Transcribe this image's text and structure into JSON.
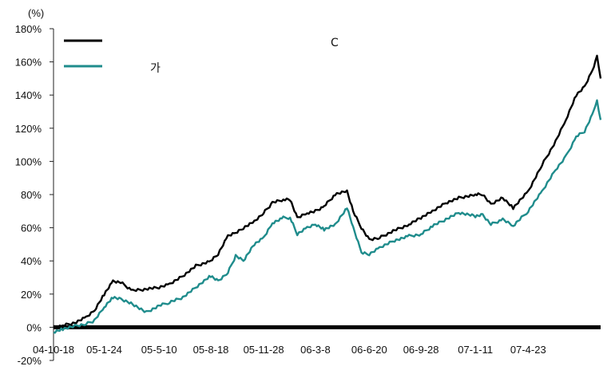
{
  "chart_data": {
    "type": "line",
    "unit_label": "(%)",
    "y_ticks": [
      "180%",
      "160%",
      "140%",
      "120%",
      "100%",
      "80%",
      "60%",
      "40%",
      "20%",
      "0%",
      "-20%"
    ],
    "x_ticks": [
      "04-10-18",
      "05-1-24",
      "05-5-10",
      "05-8-18",
      "05-11-28",
      "06-3-8",
      "06-6-20",
      "06-9-28",
      "07-1-11",
      "07-4-23"
    ],
    "x_tick_dates": [
      "2004-10-18",
      "2005-01-24",
      "2005-05-10",
      "2005-08-18",
      "2005-11-28",
      "2006-03-08",
      "2006-06-20",
      "2006-09-28",
      "2007-01-11",
      "2007-04-23"
    ],
    "x_range": [
      "2004-10-18",
      "2007-09-10"
    ],
    "ylim": [
      -20,
      180
    ],
    "grid": false,
    "legend_position": "top-left",
    "series": [
      {
        "name": "C",
        "color": "#000000",
        "points": [
          [
            "2004-10-18",
            0
          ],
          [
            "2004-11-05",
            1
          ],
          [
            "2004-12-01",
            3
          ],
          [
            "2004-12-20",
            6
          ],
          [
            "2005-01-05",
            10
          ],
          [
            "2005-01-24",
            20
          ],
          [
            "2005-02-10",
            28
          ],
          [
            "2005-02-25",
            27
          ],
          [
            "2005-03-20",
            22
          ],
          [
            "2005-04-15",
            23
          ],
          [
            "2005-05-10",
            24
          ],
          [
            "2005-05-30",
            26
          ],
          [
            "2005-06-25",
            31
          ],
          [
            "2005-07-20",
            37
          ],
          [
            "2005-08-18",
            40
          ],
          [
            "2005-09-01",
            44
          ],
          [
            "2005-09-20",
            55
          ],
          [
            "2005-10-05",
            57
          ],
          [
            "2005-10-20",
            60
          ],
          [
            "2005-11-10",
            64
          ],
          [
            "2005-11-28",
            69
          ],
          [
            "2005-12-15",
            75
          ],
          [
            "2006-01-05",
            77
          ],
          [
            "2006-01-18",
            77
          ],
          [
            "2006-02-01",
            66
          ],
          [
            "2006-02-20",
            69
          ],
          [
            "2006-03-08",
            70
          ],
          [
            "2006-03-25",
            73
          ],
          [
            "2006-04-15",
            80
          ],
          [
            "2006-05-08",
            82
          ],
          [
            "2006-05-20",
            70
          ],
          [
            "2006-06-05",
            60
          ],
          [
            "2006-06-20",
            53
          ],
          [
            "2006-07-10",
            54
          ],
          [
            "2006-08-05",
            58
          ],
          [
            "2006-09-05",
            62
          ],
          [
            "2006-09-28",
            66
          ],
          [
            "2006-10-20",
            70
          ],
          [
            "2006-11-15",
            75
          ],
          [
            "2006-12-10",
            78
          ],
          [
            "2007-01-11",
            80
          ],
          [
            "2007-01-25",
            80
          ],
          [
            "2007-02-10",
            74
          ],
          [
            "2007-03-05",
            78
          ],
          [
            "2007-03-25",
            72
          ],
          [
            "2007-04-23",
            82
          ],
          [
            "2007-05-20",
            98
          ],
          [
            "2007-06-15",
            112
          ],
          [
            "2007-07-05",
            125
          ],
          [
            "2007-07-25",
            140
          ],
          [
            "2007-08-10",
            145
          ],
          [
            "2007-08-25",
            155
          ],
          [
            "2007-09-03",
            163
          ],
          [
            "2007-09-10",
            150
          ]
        ]
      },
      {
        "name": "가",
        "color": "#1f8c8c",
        "points": [
          [
            "2004-10-18",
            -3
          ],
          [
            "2004-11-05",
            -1
          ],
          [
            "2004-12-01",
            1
          ],
          [
            "2004-12-20",
            2
          ],
          [
            "2005-01-05",
            4
          ],
          [
            "2005-01-24",
            12
          ],
          [
            "2005-02-10",
            18
          ],
          [
            "2005-02-25",
            17
          ],
          [
            "2005-03-20",
            14
          ],
          [
            "2005-04-15",
            9
          ],
          [
            "2005-05-10",
            13
          ],
          [
            "2005-05-30",
            15
          ],
          [
            "2005-06-25",
            18
          ],
          [
            "2005-07-20",
            24
          ],
          [
            "2005-08-18",
            31
          ],
          [
            "2005-09-01",
            28
          ],
          [
            "2005-09-20",
            33
          ],
          [
            "2005-10-05",
            43
          ],
          [
            "2005-10-20",
            40
          ],
          [
            "2005-11-10",
            50
          ],
          [
            "2005-11-28",
            54
          ],
          [
            "2005-12-15",
            63
          ],
          [
            "2006-01-05",
            66
          ],
          [
            "2006-01-18",
            66
          ],
          [
            "2006-02-01",
            56
          ],
          [
            "2006-02-20",
            60
          ],
          [
            "2006-03-08",
            62
          ],
          [
            "2006-03-25",
            59
          ],
          [
            "2006-04-15",
            62
          ],
          [
            "2006-05-08",
            72
          ],
          [
            "2006-05-20",
            60
          ],
          [
            "2006-06-05",
            45
          ],
          [
            "2006-06-20",
            44
          ],
          [
            "2006-07-10",
            48
          ],
          [
            "2006-08-05",
            52
          ],
          [
            "2006-09-05",
            55
          ],
          [
            "2006-09-28",
            56
          ],
          [
            "2006-10-20",
            61
          ],
          [
            "2006-11-15",
            65
          ],
          [
            "2006-12-10",
            69
          ],
          [
            "2007-01-11",
            67
          ],
          [
            "2007-01-25",
            68
          ],
          [
            "2007-02-10",
            62
          ],
          [
            "2007-03-05",
            65
          ],
          [
            "2007-03-25",
            61
          ],
          [
            "2007-04-23",
            70
          ],
          [
            "2007-05-20",
            82
          ],
          [
            "2007-06-15",
            95
          ],
          [
            "2007-07-05",
            103
          ],
          [
            "2007-07-25",
            115
          ],
          [
            "2007-08-10",
            118
          ],
          [
            "2007-08-25",
            128
          ],
          [
            "2007-09-03",
            137
          ],
          [
            "2007-09-10",
            125
          ]
        ]
      }
    ]
  }
}
